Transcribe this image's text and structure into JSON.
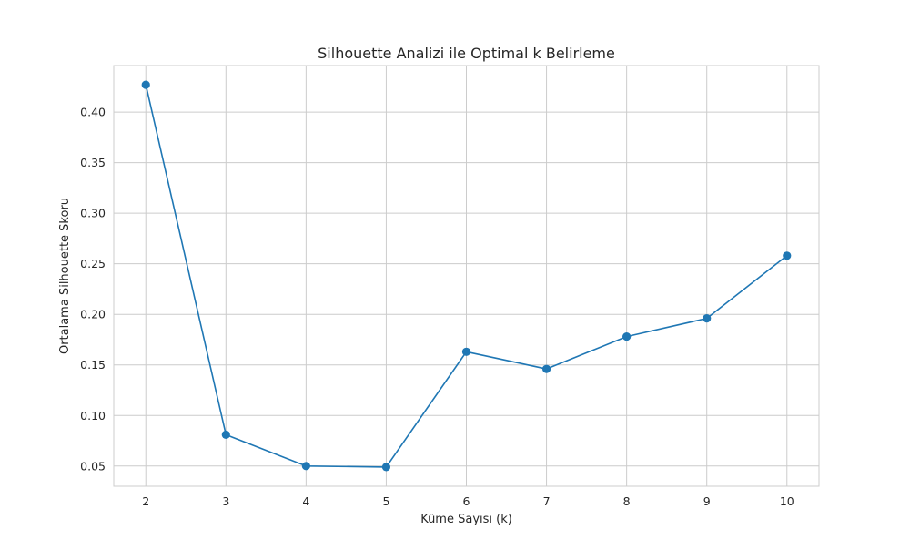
{
  "chart_data": {
    "type": "line",
    "title": "Silhouette Analizi ile Optimal k Belirleme",
    "xlabel": "Küme Sayısı (k)",
    "ylabel": "Ortalama Silhouette Skoru",
    "x": [
      2,
      3,
      4,
      5,
      6,
      7,
      8,
      9,
      10
    ],
    "series": [
      {
        "values": [
          0.427,
          0.081,
          0.05,
          0.049,
          0.163,
          0.146,
          0.178,
          0.196,
          0.258
        ],
        "color": "#1f77b4",
        "marker": "circle"
      }
    ],
    "xticks": [
      "2",
      "3",
      "4",
      "5",
      "6",
      "7",
      "8",
      "9",
      "10"
    ],
    "yticks": [
      "0.05",
      "0.10",
      "0.15",
      "0.20",
      "0.25",
      "0.30",
      "0.35",
      "0.40"
    ],
    "xlim": [
      1.6,
      10.4
    ],
    "ylim": [
      0.03,
      0.446
    ],
    "grid": true,
    "colors": {
      "line": "#1f77b4",
      "grid": "#cccccc",
      "axes_edge": "#cccccc",
      "text": "#262626"
    }
  }
}
